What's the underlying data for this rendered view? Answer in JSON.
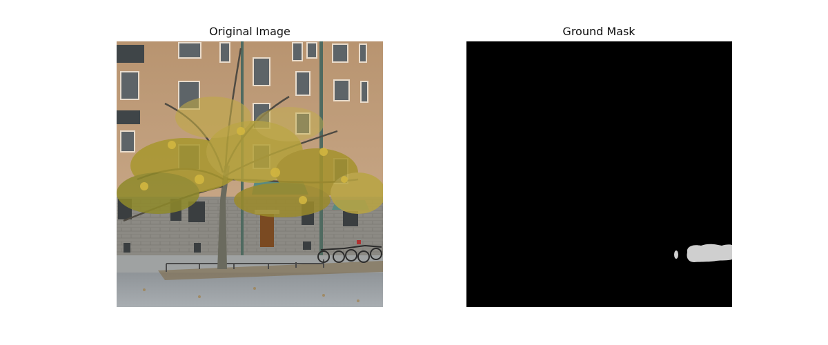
{
  "panels": {
    "left": {
      "title": "Original Image",
      "content": "photo"
    },
    "right": {
      "title": "Ground Mask",
      "content": "mask"
    }
  },
  "colors": {
    "background": "#ffffff",
    "mask_background": "#000000",
    "mask_foreground": "#cfcfcf"
  }
}
